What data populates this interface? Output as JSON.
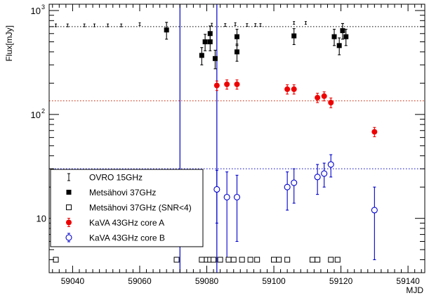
{
  "chart_data": {
    "type": "scatter",
    "xlabel": "MJD",
    "ylabel": "Flux[mJy]",
    "xlim": [
      59033,
      59145
    ],
    "ylim": [
      3.0,
      1150
    ],
    "ylog": true,
    "grid": false,
    "legend_position": "bottom-left",
    "x_ticks": [
      {
        "value": 59040,
        "label": "59040"
      },
      {
        "value": 59060,
        "label": "59060"
      },
      {
        "value": 59080,
        "label": "59080"
      },
      {
        "value": 59100,
        "label": "59100"
      },
      {
        "value": 59120,
        "label": "59120"
      },
      {
        "value": 59140,
        "label": "59140"
      }
    ],
    "y_ticks": [
      {
        "value": 10,
        "label": "10"
      },
      {
        "value": 100,
        "label": "10",
        "sup": "2"
      },
      {
        "value": 1000,
        "label": "10",
        "sup": "3"
      }
    ],
    "vertical_lines": [
      {
        "x": 59072,
        "color": "#0000cc"
      },
      {
        "x": 59083,
        "color": "#0000cc"
      }
    ],
    "horizontal_lines": [
      {
        "y": 700,
        "color": "#000000"
      },
      {
        "y": 135,
        "color": "#cc2200"
      },
      {
        "y": 30,
        "color": "#0000cc"
      }
    ],
    "series": [
      {
        "name": "OVRO 15GHz",
        "marker": "dot",
        "color": "#000000",
        "points": [
          {
            "x": 59035,
            "y": 720
          },
          {
            "x": 59038.5,
            "y": 720
          },
          {
            "x": 59043.5,
            "y": 720
          },
          {
            "x": 59046.5,
            "y": 720
          },
          {
            "x": 59050.5,
            "y": 720
          },
          {
            "x": 59054.5,
            "y": 720
          },
          {
            "x": 59060,
            "y": 740
          },
          {
            "x": 59081.5,
            "y": 730
          },
          {
            "x": 59085.5,
            "y": 725
          },
          {
            "x": 59088.5,
            "y": 740
          },
          {
            "x": 59092,
            "y": 725
          },
          {
            "x": 59094.5,
            "y": 725
          },
          {
            "x": 59096,
            "y": 725
          },
          {
            "x": 59106,
            "y": 760
          },
          {
            "x": 59109.5,
            "y": 760
          }
        ]
      },
      {
        "name": "Metsähovi 37GHz",
        "marker": "square-filled",
        "color": "#000000",
        "points": [
          {
            "x": 59068,
            "y": 650,
            "err": 120
          },
          {
            "x": 59078.5,
            "y": 370,
            "err": 70
          },
          {
            "x": 59079.5,
            "y": 500,
            "err": 90
          },
          {
            "x": 59081,
            "y": 600,
            "err": 110
          },
          {
            "x": 59081,
            "y": 500,
            "err": 90
          },
          {
            "x": 59082.5,
            "y": 345,
            "err": 70
          },
          {
            "x": 59089,
            "y": 560,
            "err": 100
          },
          {
            "x": 59089,
            "y": 400,
            "err": 75
          },
          {
            "x": 59106,
            "y": 570,
            "err": 100
          },
          {
            "x": 59118,
            "y": 560,
            "err": 100
          },
          {
            "x": 59119.5,
            "y": 460,
            "err": 85
          },
          {
            "x": 59120.5,
            "y": 640,
            "err": 110
          },
          {
            "x": 59121.5,
            "y": 560,
            "err": 100
          }
        ]
      },
      {
        "name": "Metsähovi 37GHz (SNR<4)",
        "marker": "square-open",
        "color": "#000000",
        "points": [
          {
            "x": 59035,
            "y": 4
          },
          {
            "x": 59071,
            "y": 4
          },
          {
            "x": 59078.5,
            "y": 4
          },
          {
            "x": 59080,
            "y": 4
          },
          {
            "x": 59081,
            "y": 4
          },
          {
            "x": 59082,
            "y": 4
          },
          {
            "x": 59084,
            "y": 4
          },
          {
            "x": 59086.5,
            "y": 4
          },
          {
            "x": 59088,
            "y": 4
          },
          {
            "x": 59090.5,
            "y": 4
          },
          {
            "x": 59093,
            "y": 4
          },
          {
            "x": 59095,
            "y": 4
          },
          {
            "x": 59100,
            "y": 4
          },
          {
            "x": 59101.5,
            "y": 4
          },
          {
            "x": 59104,
            "y": 4
          },
          {
            "x": 59111.5,
            "y": 4
          },
          {
            "x": 59113,
            "y": 4
          },
          {
            "x": 59117,
            "y": 4
          },
          {
            "x": 59119,
            "y": 4
          }
        ]
      },
      {
        "name": "KaVA 43GHz core A",
        "marker": "circle-filled",
        "color": "#ee0000",
        "points": [
          {
            "x": 59083,
            "y": 190,
            "err": 20
          },
          {
            "x": 59086,
            "y": 195,
            "err": 20
          },
          {
            "x": 59089,
            "y": 195,
            "err": 20
          },
          {
            "x": 59104,
            "y": 175,
            "err": 18
          },
          {
            "x": 59106,
            "y": 175,
            "err": 18
          },
          {
            "x": 59113,
            "y": 145,
            "err": 15
          },
          {
            "x": 59115,
            "y": 150,
            "err": 15
          },
          {
            "x": 59117,
            "y": 130,
            "err": 14
          },
          {
            "x": 59130,
            "y": 68,
            "err": 7
          }
        ]
      },
      {
        "name": "KaVA 43GHz core B",
        "marker": "circle-open",
        "color": "#0000cc",
        "points": [
          {
            "x": 59083,
            "y": 19,
            "err": 10
          },
          {
            "x": 59086,
            "y": 16,
            "err": 12
          },
          {
            "x": 59089,
            "y": 16,
            "err": 10
          },
          {
            "x": 59104,
            "y": 20,
            "err": 8
          },
          {
            "x": 59106,
            "y": 22,
            "err": 8
          },
          {
            "x": 59113,
            "y": 25,
            "err": 8
          },
          {
            "x": 59115,
            "y": 27,
            "err": 7
          },
          {
            "x": 59117,
            "y": 33,
            "err": 8
          },
          {
            "x": 59130,
            "y": 12,
            "err": 8
          }
        ]
      }
    ]
  }
}
